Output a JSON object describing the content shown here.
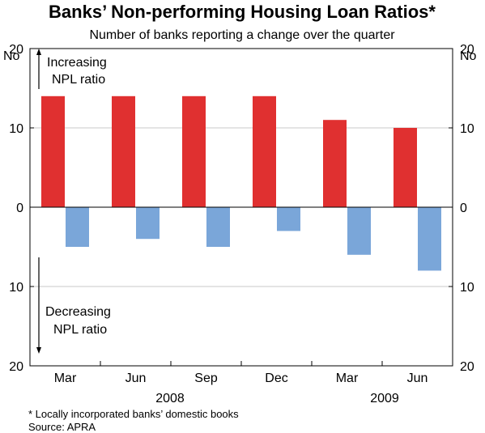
{
  "chart_data": {
    "type": "bar",
    "title": "Banks’ Non-performing Housing Loan Ratios*",
    "subtitle": "Number of banks reporting a change over the quarter",
    "unit_left": "No",
    "unit_right": "No",
    "categories": [
      "Mar",
      "Jun",
      "Sep",
      "Dec",
      "Mar",
      "Jun"
    ],
    "year_labels": [
      "2008",
      "2009"
    ],
    "series": [
      {
        "key": "increasing",
        "color": "#e03030",
        "values": [
          14,
          14,
          14,
          14,
          11,
          10
        ]
      },
      {
        "key": "decreasing",
        "color": "#7aa6d9",
        "values": [
          5,
          4,
          5,
          3,
          6,
          8
        ]
      }
    ],
    "y_ticks": [
      "20",
      "10",
      "0",
      "10",
      "20"
    ],
    "ylim": [
      -20,
      20
    ],
    "grid": true,
    "annotations": {
      "increasing": [
        "Increasing",
        "NPL ratio"
      ],
      "decreasing": [
        "Decreasing",
        "NPL ratio"
      ]
    },
    "footnote": "*   Locally incorporated banks’ domestic books",
    "source": "Source: APRA"
  }
}
